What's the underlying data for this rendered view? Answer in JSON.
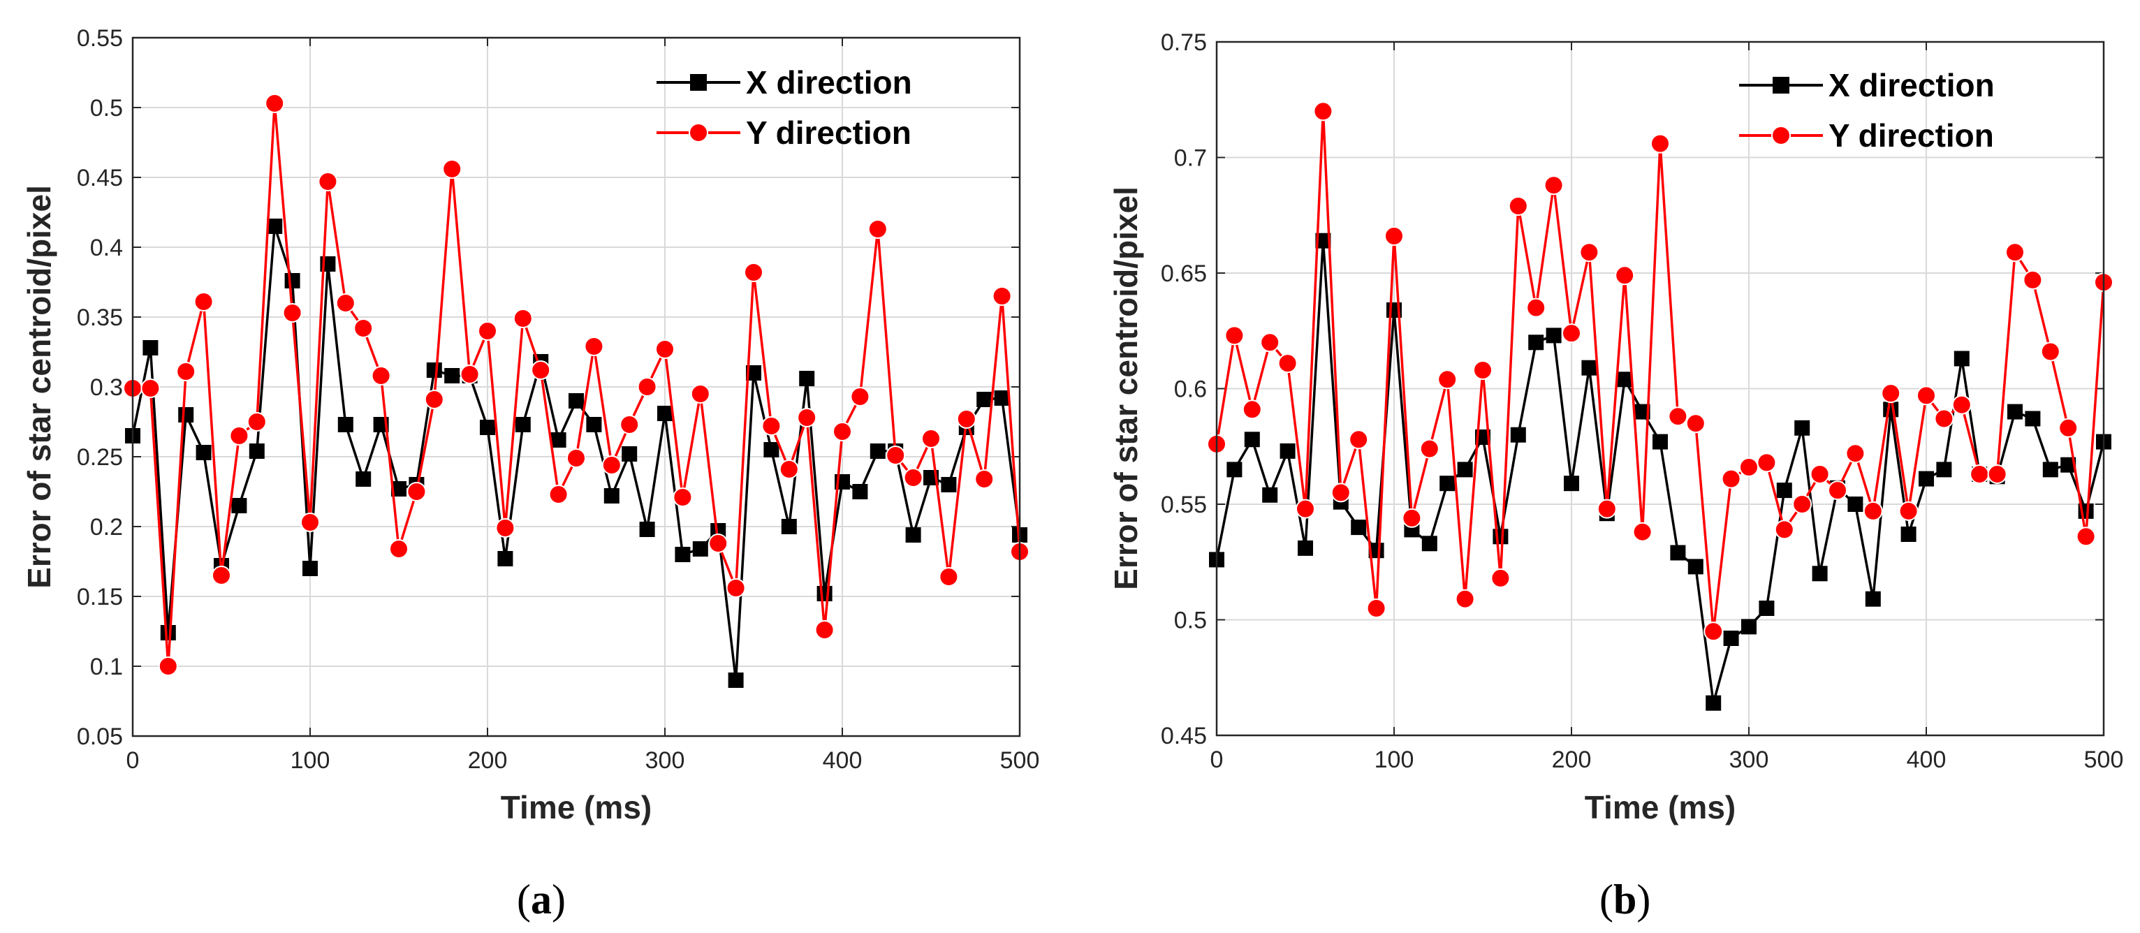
{
  "colors": {
    "x_series": "#000000",
    "y_series": "#ff0000",
    "grid": "#d9d9d9",
    "axis": "#262626"
  },
  "chart_data": [
    {
      "type": "line",
      "caption_pre": "(",
      "caption": "a",
      "caption_post": ")",
      "xlabel": "Time (ms)",
      "ylabel": "Error of star centroid/pixel",
      "xlim": [
        0,
        500
      ],
      "ylim": [
        0.05,
        0.55
      ],
      "xticks": [
        0,
        100,
        200,
        300,
        400,
        500
      ],
      "xtick_labels": [
        "0",
        "100",
        "200",
        "300",
        "400",
        "500"
      ],
      "yticks": [
        0.05,
        0.1,
        0.15,
        0.2,
        0.25,
        0.3,
        0.35,
        0.4,
        0.45,
        0.5,
        0.55
      ],
      "ytick_labels": [
        "0.05",
        "0.1",
        "0.15",
        "0.2",
        "0.25",
        "0.3",
        "0.35",
        "0.4",
        "0.45",
        "0.5",
        "0.55"
      ],
      "grid": true,
      "legend_position": "top-right",
      "x": [
        0,
        10,
        20,
        30,
        40,
        50,
        60,
        70,
        80,
        90,
        100,
        110,
        120,
        130,
        140,
        150,
        160,
        170,
        180,
        190,
        200,
        210,
        220,
        230,
        240,
        250,
        260,
        270,
        280,
        290,
        300,
        310,
        320,
        330,
        340,
        350,
        360,
        370,
        380,
        390,
        400,
        410,
        420,
        430,
        440,
        450,
        460,
        470,
        480,
        490,
        500
      ],
      "series": [
        {
          "name": "X direction",
          "marker": "square",
          "values": [
            0.265,
            0.328,
            0.124,
            0.28,
            0.253,
            0.172,
            0.215,
            0.254,
            0.415,
            0.376,
            0.17,
            0.388,
            0.273,
            0.234,
            0.273,
            0.227,
            0.23,
            0.312,
            0.308,
            0.308,
            0.271,
            0.177,
            0.273,
            0.318,
            0.262,
            0.29,
            0.273,
            0.222,
            0.252,
            0.198,
            0.281,
            0.18,
            0.184,
            0.197,
            0.09,
            0.31,
            0.255,
            0.2,
            0.306,
            0.152,
            0.232,
            0.225,
            0.254,
            0.254,
            0.194,
            0.235,
            0.23,
            0.271,
            0.291,
            0.292,
            0.194
          ]
        },
        {
          "name": "Y direction",
          "marker": "circle",
          "values": [
            0.299,
            0.299,
            0.1,
            0.311,
            0.361,
            0.165,
            0.265,
            0.275,
            0.503,
            0.353,
            0.203,
            0.447,
            0.36,
            0.342,
            0.308,
            0.184,
            0.225,
            0.291,
            0.456,
            0.309,
            0.34,
            0.199,
            0.349,
            0.312,
            0.223,
            0.249,
            0.329,
            0.244,
            0.273,
            0.3,
            0.327,
            0.221,
            0.295,
            0.188,
            0.156,
            0.382,
            0.272,
            0.241,
            0.278,
            0.126,
            0.268,
            0.293,
            0.413,
            0.251,
            0.235,
            0.263,
            0.164,
            0.277,
            0.234,
            0.365,
            0.182
          ]
        }
      ]
    },
    {
      "type": "line",
      "caption_pre": "(",
      "caption": "b",
      "caption_post": ")",
      "xlabel": "Time (ms)",
      "ylabel": "Error of star centroid/pixel",
      "xlim": [
        0,
        500
      ],
      "ylim": [
        0.45,
        0.75
      ],
      "xticks": [
        0,
        100,
        200,
        300,
        400,
        500
      ],
      "xtick_labels": [
        "0",
        "100",
        "200",
        "300",
        "400",
        "500"
      ],
      "yticks": [
        0.45,
        0.5,
        0.55,
        0.6,
        0.65,
        0.7,
        0.75
      ],
      "ytick_labels": [
        "0.45",
        "0.5",
        "0.55",
        "0.6",
        "0.65",
        "0.7",
        "0.75"
      ],
      "grid": true,
      "legend_position": "top-right",
      "x": [
        0,
        10,
        20,
        30,
        40,
        50,
        60,
        70,
        80,
        90,
        100,
        110,
        120,
        130,
        140,
        150,
        160,
        170,
        180,
        190,
        200,
        210,
        220,
        230,
        240,
        250,
        260,
        270,
        280,
        290,
        300,
        310,
        320,
        330,
        340,
        350,
        360,
        370,
        380,
        390,
        400,
        410,
        420,
        430,
        440,
        450,
        460,
        470,
        480,
        490,
        500
      ],
      "series": [
        {
          "name": "X direction",
          "marker": "square",
          "values": [
            0.526,
            0.565,
            0.578,
            0.554,
            0.573,
            0.531,
            0.664,
            0.551,
            0.54,
            0.53,
            0.634,
            0.539,
            0.533,
            0.559,
            0.565,
            0.579,
            0.536,
            0.58,
            0.62,
            0.623,
            0.559,
            0.609,
            0.546,
            0.604,
            0.59,
            0.577,
            0.529,
            0.523,
            0.464,
            0.492,
            0.497,
            0.505,
            0.556,
            0.583,
            0.52,
            0.557,
            0.55,
            0.509,
            0.591,
            0.537,
            0.561,
            0.565,
            0.613,
            0.563,
            0.562,
            0.59,
            0.587,
            0.565,
            0.567,
            0.547,
            0.577
          ]
        },
        {
          "name": "Y direction",
          "marker": "circle",
          "values": [
            0.576,
            0.623,
            0.591,
            0.62,
            0.611,
            0.548,
            0.72,
            0.555,
            0.578,
            0.505,
            0.666,
            0.544,
            0.574,
            0.604,
            0.509,
            0.608,
            0.518,
            0.679,
            0.635,
            0.688,
            0.624,
            0.659,
            0.548,
            0.649,
            0.538,
            0.706,
            0.588,
            0.585,
            0.495,
            0.561,
            0.566,
            0.568,
            0.539,
            0.55,
            0.563,
            0.556,
            0.572,
            0.547,
            0.598,
            0.547,
            0.597,
            0.587,
            0.593,
            0.563,
            0.563,
            0.659,
            0.647,
            0.616,
            0.583,
            0.536,
            0.646
          ]
        }
      ]
    }
  ]
}
